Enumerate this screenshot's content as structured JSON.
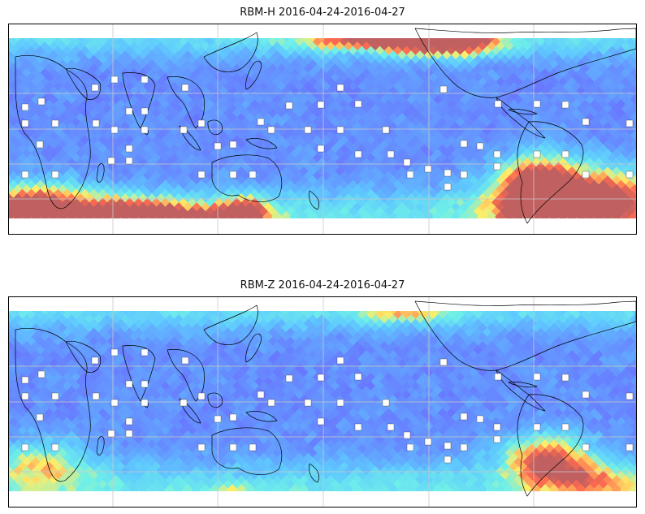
{
  "panels": [
    {
      "title": "RBM-H 2016-04-24-2016-04-27",
      "variant": "H"
    },
    {
      "title": "RBM-Z 2016-04-24-2016-04-27",
      "variant": "Z"
    }
  ],
  "colors": {
    "low": "#6a6aff",
    "mid_low": "#5fc8ff",
    "mid": "#6ff0e8",
    "mid_high": "#ffee66",
    "high": "#ff6a50",
    "max": "#c06060",
    "gridline": "#c8c8c8",
    "coastline": "#000000"
  }
}
